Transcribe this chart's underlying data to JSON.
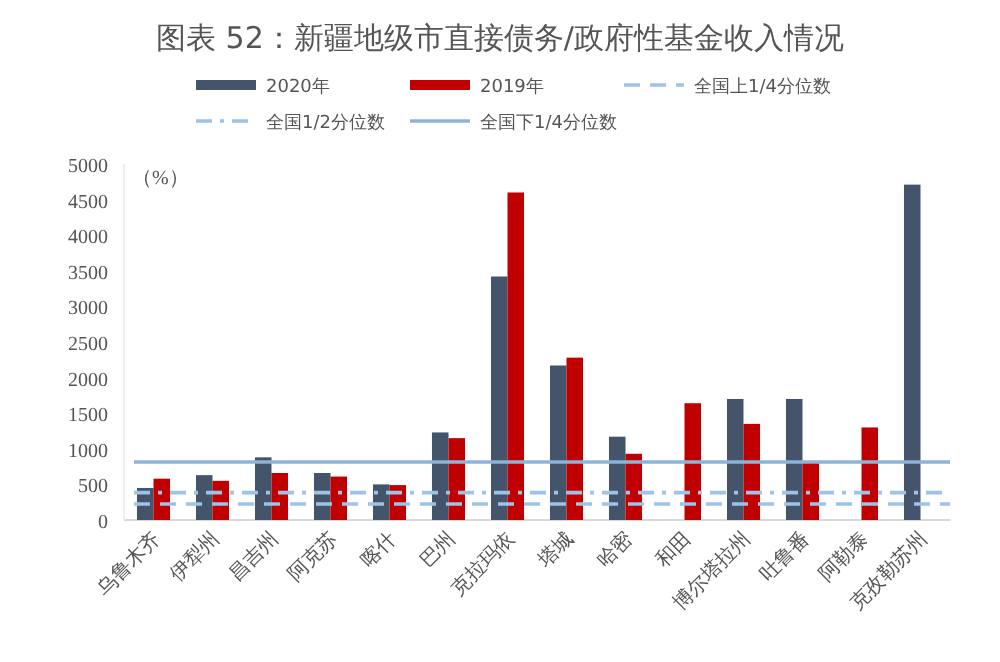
{
  "chart_data": {
    "type": "bar",
    "title": "图表 52：新疆地级市直接债务/政府性基金收入情况",
    "ylabel": "（%）",
    "categories": [
      "乌鲁木齐",
      "伊犁州",
      "昌吉州",
      "阿克苏",
      "喀什",
      "巴州",
      "克拉玛依",
      "塔城",
      "哈密",
      "和田",
      "博尔塔拉州",
      "吐鲁番",
      "阿勒泰",
      "克孜勒苏州"
    ],
    "series": [
      {
        "name": "2020年",
        "color": "#44546a",
        "values": [
          450,
          630,
          880,
          660,
          500,
          1230,
          3420,
          2170,
          1170,
          null,
          1700,
          1700,
          null,
          4710
        ]
      },
      {
        "name": "2019年",
        "color": "#c00000",
        "values": [
          580,
          550,
          660,
          610,
          490,
          1150,
          4600,
          2280,
          930,
          1640,
          1350,
          800,
          1300,
          null
        ]
      }
    ],
    "ref_lines": [
      {
        "axis": "y",
        "value": 225,
        "label": "全国上1/4分位数",
        "color": "#9dc3e6",
        "line_style": "dashed"
      },
      {
        "axis": "y",
        "value": 385,
        "label": "全国1/2分位数",
        "color": "#9dc3e6",
        "line_style": "dashdot"
      },
      {
        "axis": "y",
        "value": 815,
        "label": "全国下1/4分位数",
        "color": "#8db4d8",
        "line_style": "solid"
      }
    ],
    "ylim": [
      0,
      5000
    ],
    "yticks": [
      0,
      500,
      1000,
      1500,
      2000,
      2500,
      3000,
      3500,
      4000,
      4500,
      5000
    ],
    "grid": false,
    "legend": "top"
  }
}
